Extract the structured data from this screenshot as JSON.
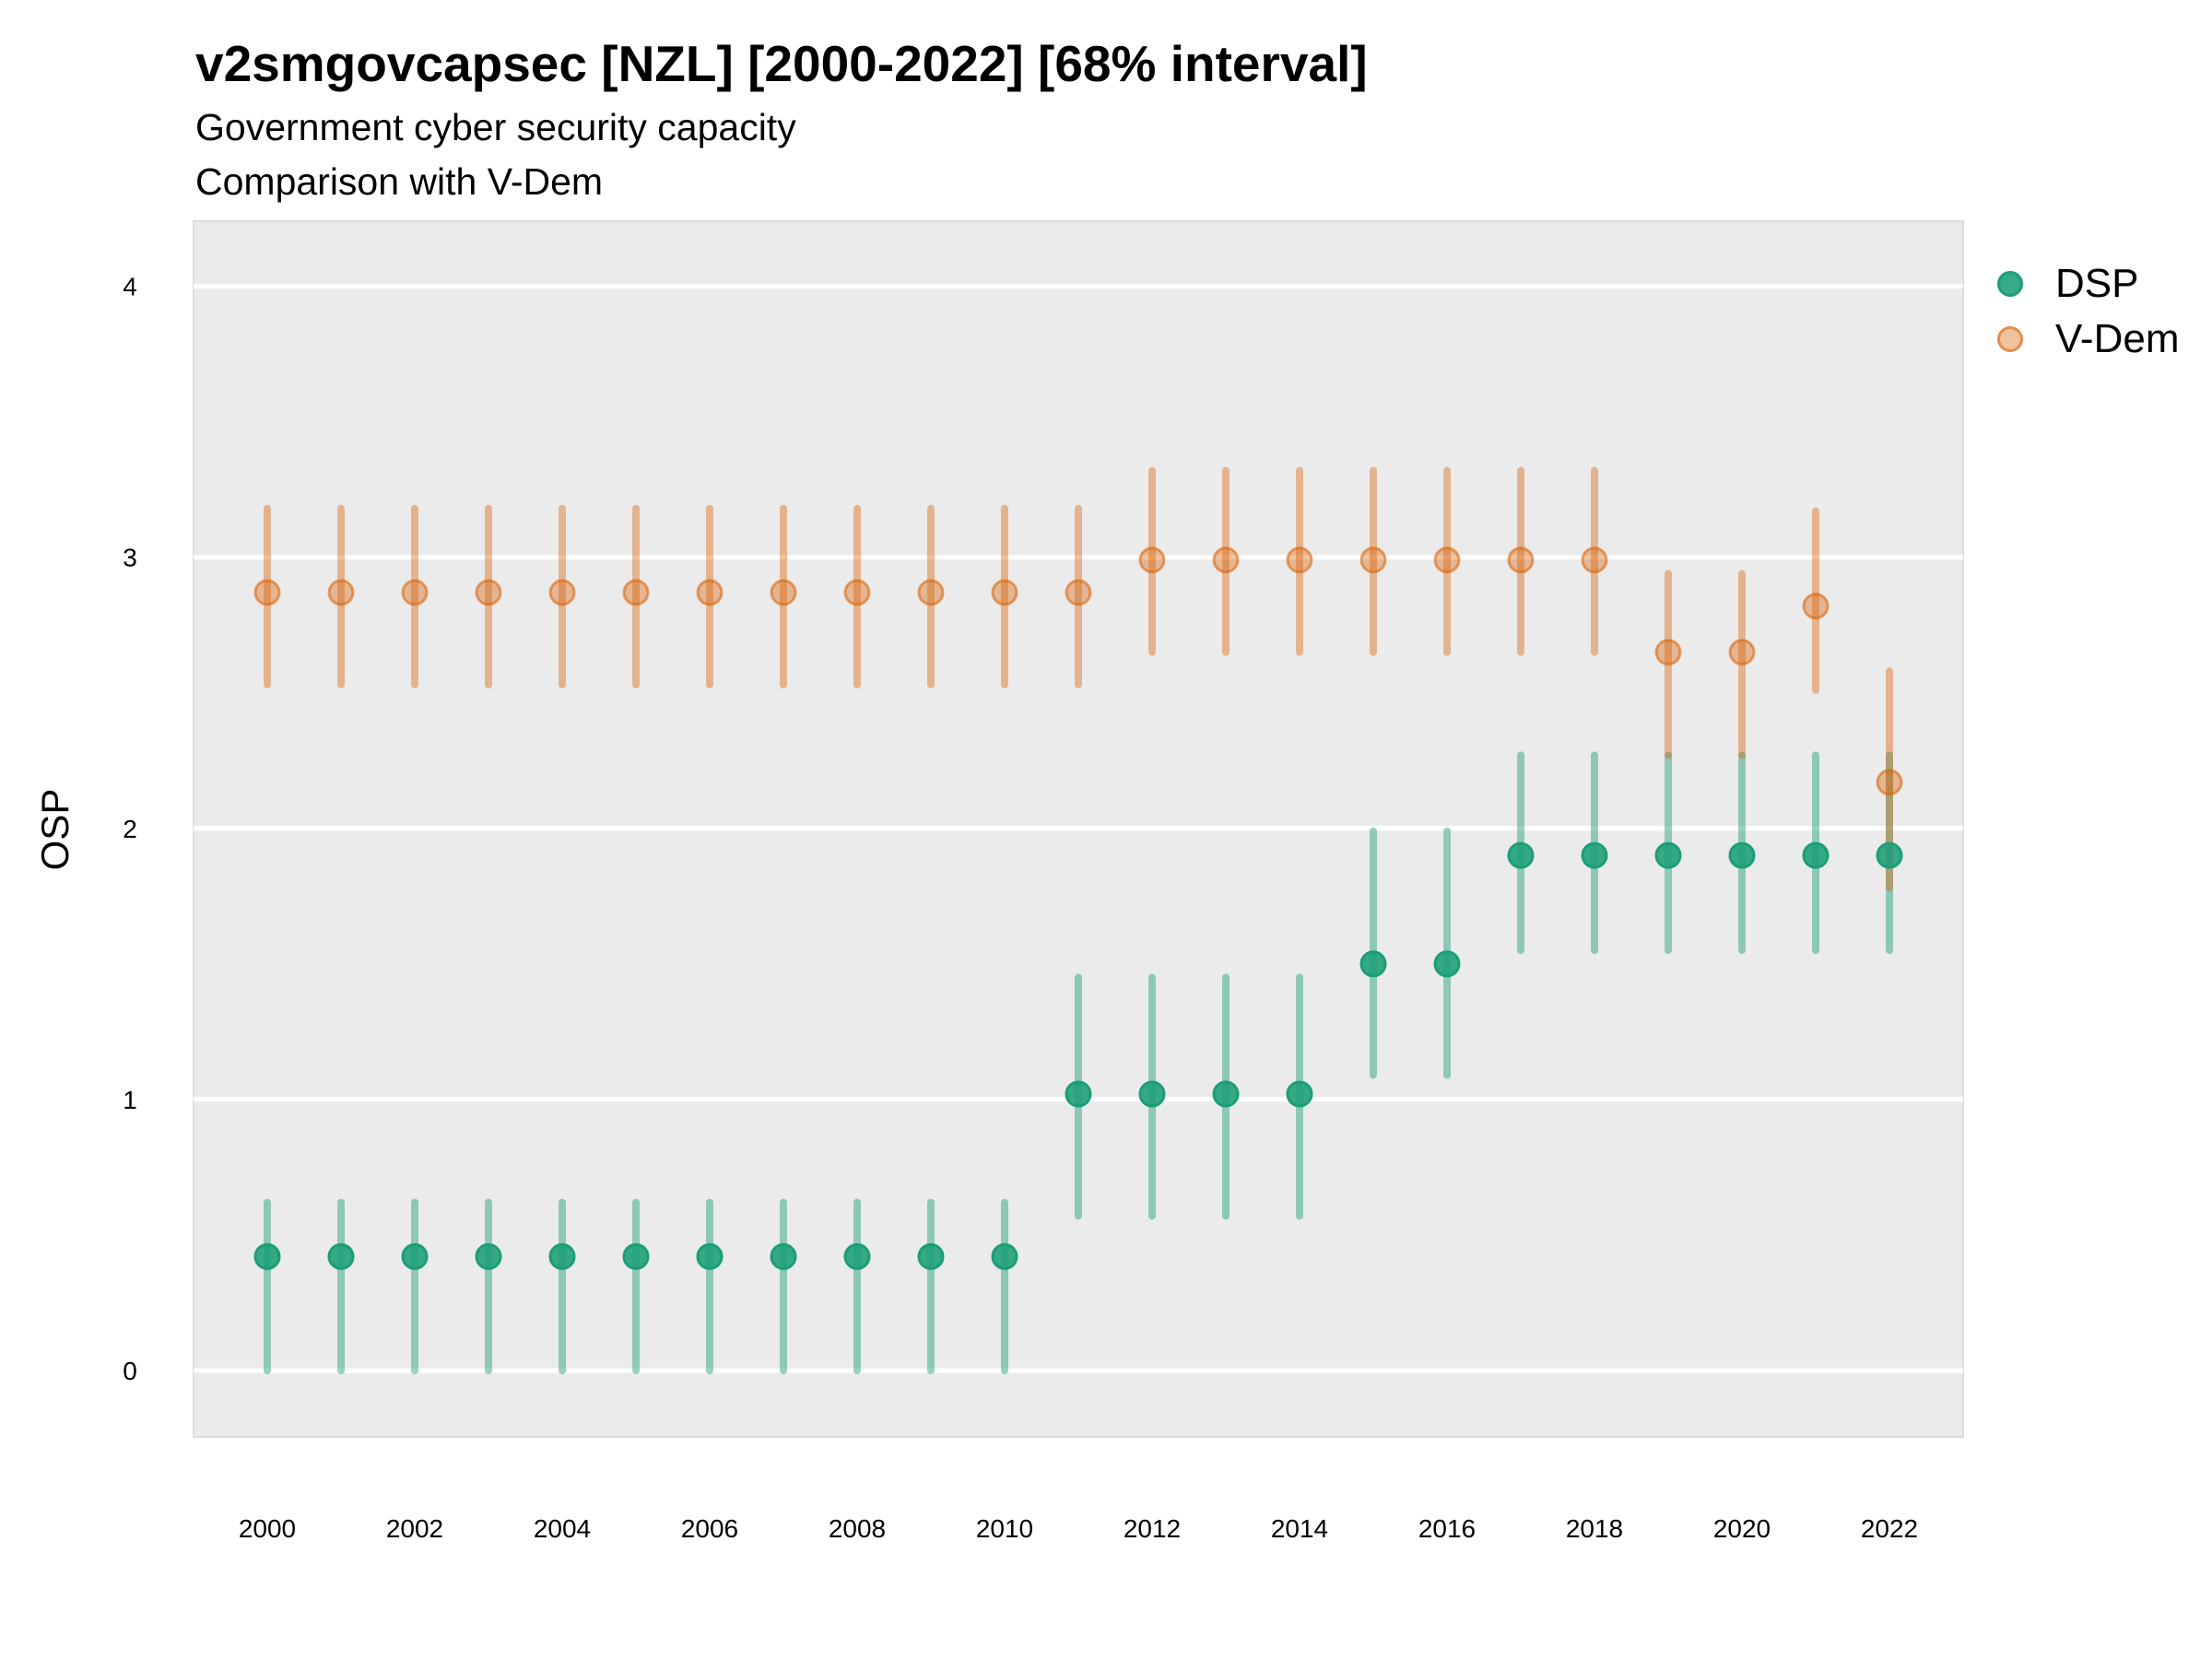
{
  "chart_data": {
    "type": "scatter",
    "title": "v2smgovcapsec [NZL] [2000-2022] [68% interval]",
    "subtitle": [
      "Government cyber security capacity",
      "Comparison with V-Dem"
    ],
    "xlabel": "",
    "ylabel": "OSP",
    "xlim": [
      1999,
      2023
    ],
    "ylim": [
      -0.245,
      4.24
    ],
    "xticks": [
      2000,
      2002,
      2004,
      2006,
      2008,
      2010,
      2012,
      2014,
      2016,
      2018,
      2020,
      2022
    ],
    "xtick_labels": [
      "2000",
      "2002",
      "2004",
      "2006",
      "2008",
      "2010",
      "2012",
      "2014",
      "2016",
      "2018",
      "2020",
      "2022"
    ],
    "yticks": [
      0,
      1,
      2,
      3,
      4
    ],
    "ytick_labels": [
      "0",
      "1",
      "2",
      "3",
      "4"
    ],
    "grid": true,
    "legend_position": "right",
    "x": [
      2000,
      2001,
      2002,
      2003,
      2004,
      2005,
      2006,
      2007,
      2008,
      2009,
      2010,
      2011,
      2012,
      2013,
      2014,
      2015,
      2016,
      2017,
      2018,
      2019,
      2020,
      2021,
      2022
    ],
    "series": [
      {
        "name": "DSP",
        "color": "#1b9e77",
        "values": [
          0.42,
          0.42,
          0.42,
          0.42,
          0.42,
          0.42,
          0.42,
          0.42,
          0.42,
          0.42,
          0.42,
          1.02,
          1.02,
          1.02,
          1.02,
          1.5,
          1.5,
          1.9,
          1.9,
          1.9,
          1.9,
          1.9,
          1.9
        ],
        "lower": [
          0.0,
          0.0,
          0.0,
          0.0,
          0.0,
          0.0,
          0.0,
          0.0,
          0.0,
          0.0,
          0.0,
          0.57,
          0.57,
          0.57,
          0.57,
          1.09,
          1.09,
          1.55,
          1.55,
          1.55,
          1.55,
          1.55,
          1.55
        ],
        "upper": [
          0.62,
          0.62,
          0.62,
          0.62,
          0.62,
          0.62,
          0.62,
          0.62,
          0.62,
          0.62,
          0.62,
          1.45,
          1.45,
          1.45,
          1.45,
          1.99,
          1.99,
          2.27,
          2.27,
          2.27,
          2.27,
          2.27,
          2.27
        ]
      },
      {
        "name": "V-Dem",
        "color": "#d95f02",
        "values": [
          2.87,
          2.87,
          2.87,
          2.87,
          2.87,
          2.87,
          2.87,
          2.87,
          2.87,
          2.87,
          2.87,
          2.87,
          2.99,
          2.99,
          2.99,
          2.99,
          2.99,
          2.99,
          2.99,
          2.65,
          2.65,
          2.82,
          2.17
        ],
        "lower": [
          2.53,
          2.53,
          2.53,
          2.53,
          2.53,
          2.53,
          2.53,
          2.53,
          2.53,
          2.53,
          2.53,
          2.53,
          2.65,
          2.65,
          2.65,
          2.65,
          2.65,
          2.65,
          2.65,
          2.27,
          2.27,
          2.51,
          1.78
        ],
        "upper": [
          3.18,
          3.18,
          3.18,
          3.18,
          3.18,
          3.18,
          3.18,
          3.18,
          3.18,
          3.18,
          3.18,
          3.18,
          3.32,
          3.32,
          3.32,
          3.32,
          3.32,
          3.32,
          3.32,
          2.94,
          2.94,
          3.17,
          2.58
        ]
      }
    ],
    "interval": "68% interval"
  }
}
